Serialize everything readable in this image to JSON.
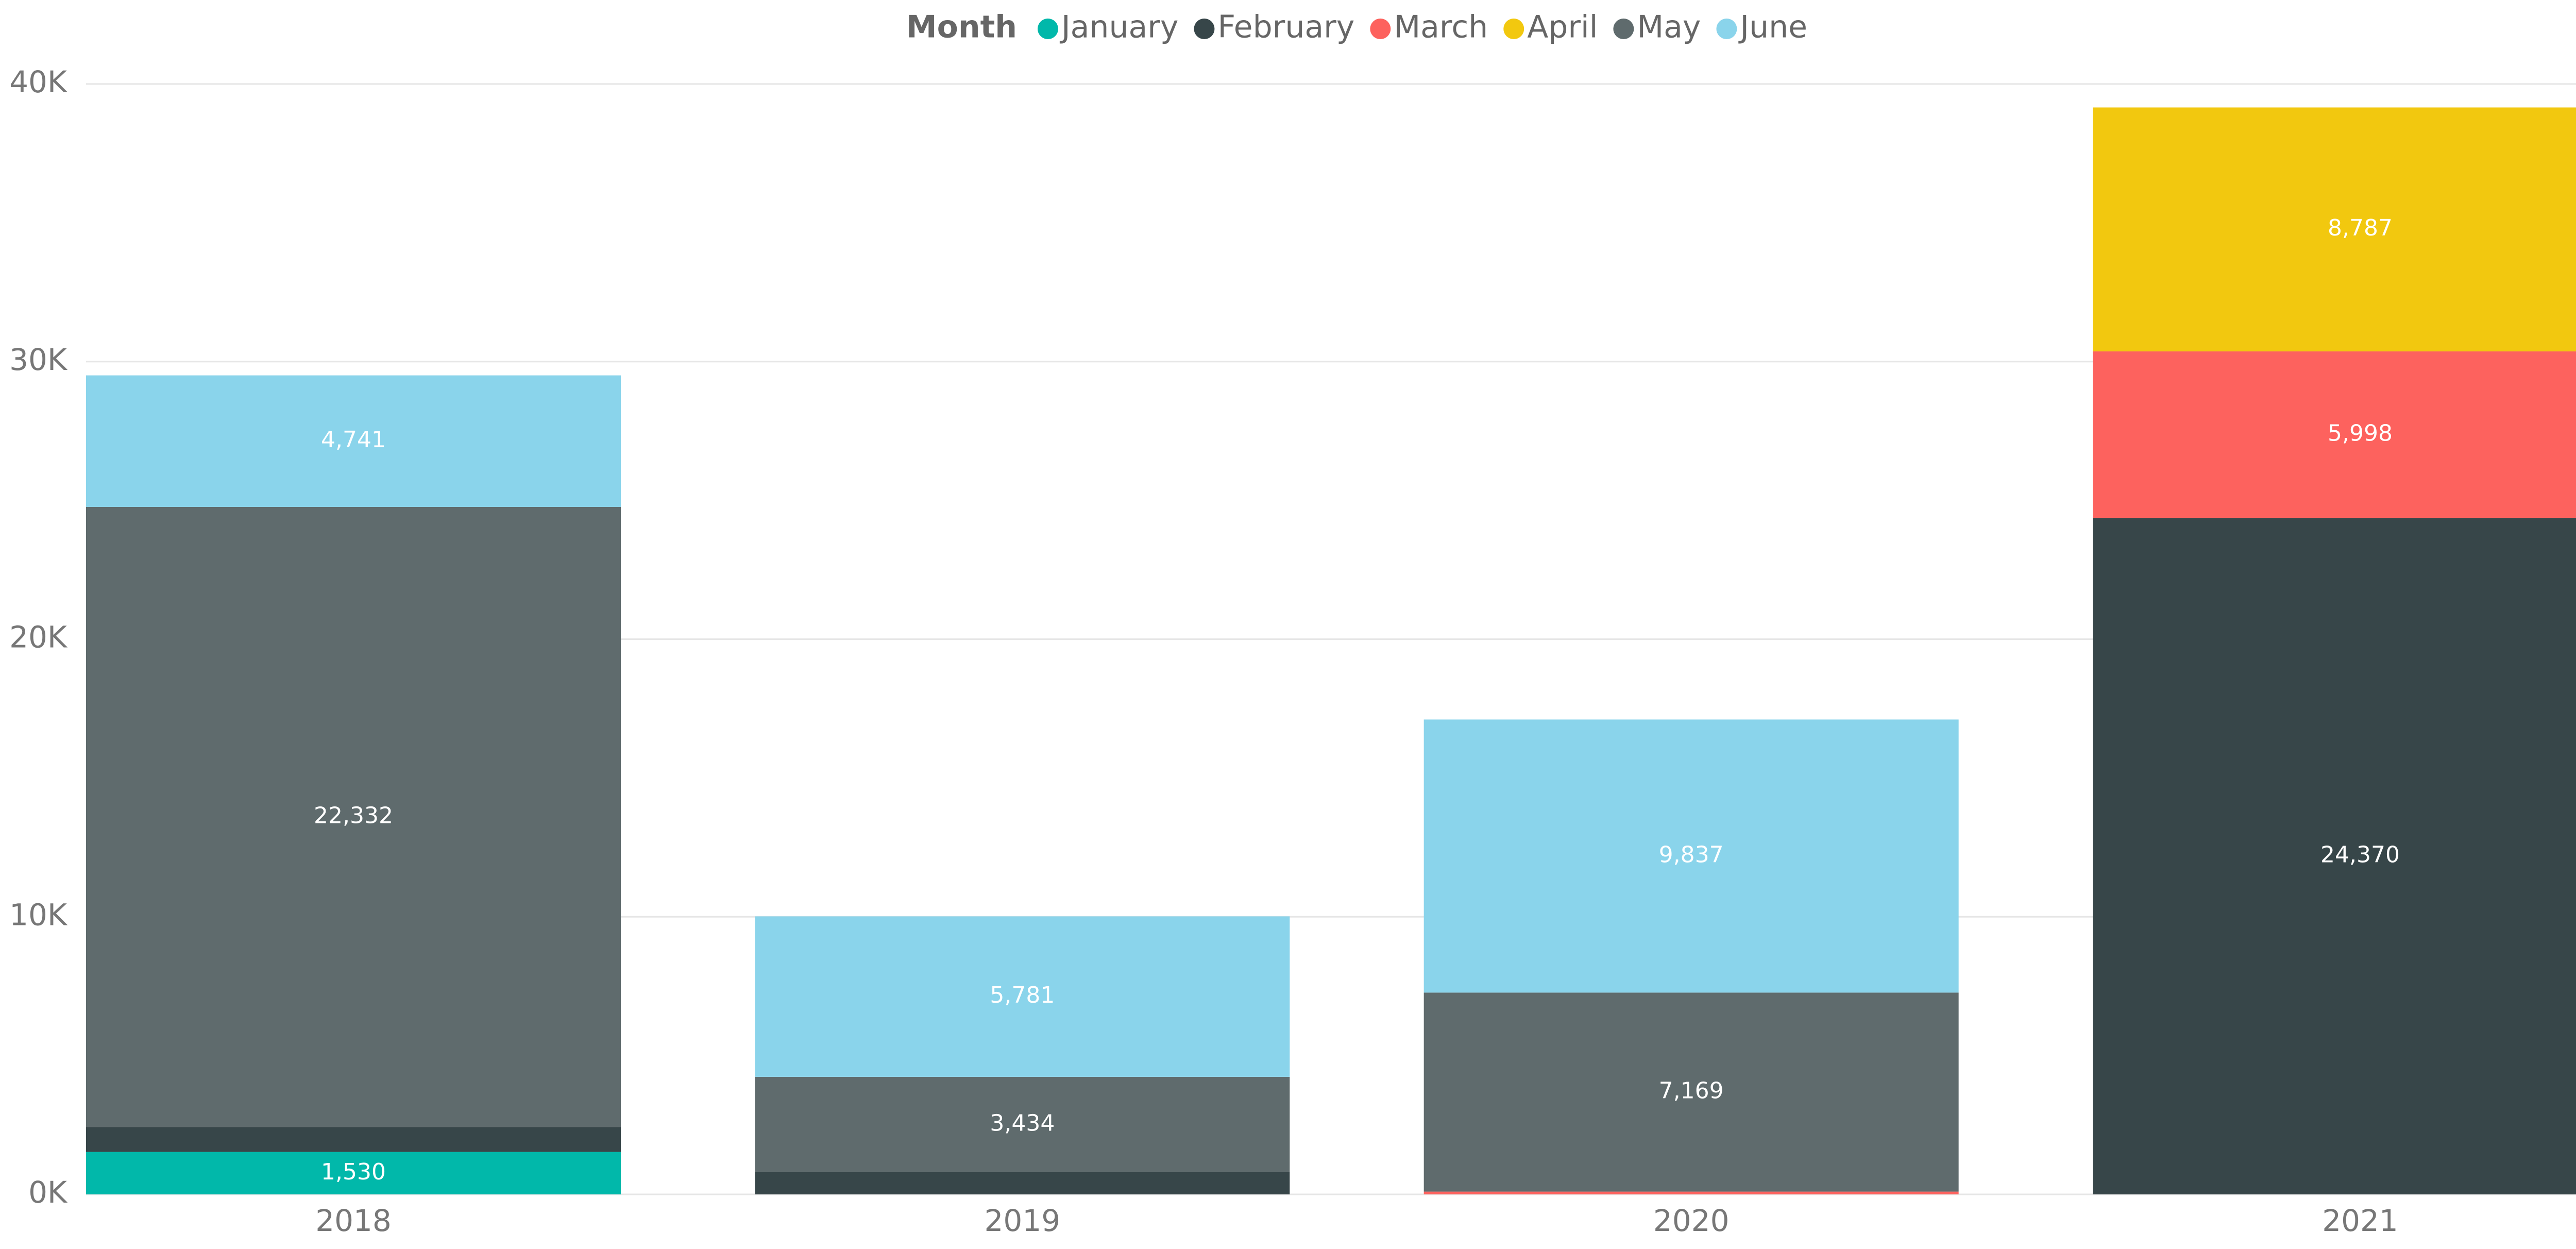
{
  "chart_data": {
    "type": "stacked_bar",
    "legend_title": "Month",
    "legend_position": "top",
    "categories": [
      "2018",
      "2019",
      "2020",
      "2021"
    ],
    "series": [
      {
        "name": "January",
        "color": "#01B8AA",
        "values": [
          1530,
          null,
          null,
          null
        ],
        "value_labels": [
          "1,530",
          null,
          null,
          null
        ]
      },
      {
        "name": "February",
        "color": "#374649",
        "values": [
          900,
          800,
          null,
          24370
        ],
        "value_labels": [
          null,
          null,
          null,
          "24,370"
        ]
      },
      {
        "name": "March",
        "color": "#FD625E",
        "values": [
          null,
          null,
          100,
          5998
        ],
        "value_labels": [
          null,
          null,
          null,
          "5,998"
        ]
      },
      {
        "name": "April",
        "color": "#F2C80F",
        "values": [
          null,
          null,
          null,
          8787
        ],
        "value_labels": [
          null,
          null,
          null,
          "8,787"
        ]
      },
      {
        "name": "May",
        "color": "#5F6B6D",
        "values": [
          22332,
          3434,
          7169,
          null
        ],
        "value_labels": [
          "22,332",
          "3,434",
          "7,169",
          null
        ]
      },
      {
        "name": "June",
        "color": "#8AD4EB",
        "values": [
          4741,
          5781,
          9837,
          null
        ],
        "value_labels": [
          "4,741",
          "5,781",
          "9,837",
          null
        ]
      }
    ],
    "ylim": [
      0,
      40000
    ],
    "yticks": [
      {
        "value": 0,
        "label": "0K"
      },
      {
        "value": 10000,
        "label": "10K"
      },
      {
        "value": 20000,
        "label": "20K"
      },
      {
        "value": 30000,
        "label": "30K"
      },
      {
        "value": 40000,
        "label": "40K"
      }
    ],
    "grid": true
  }
}
